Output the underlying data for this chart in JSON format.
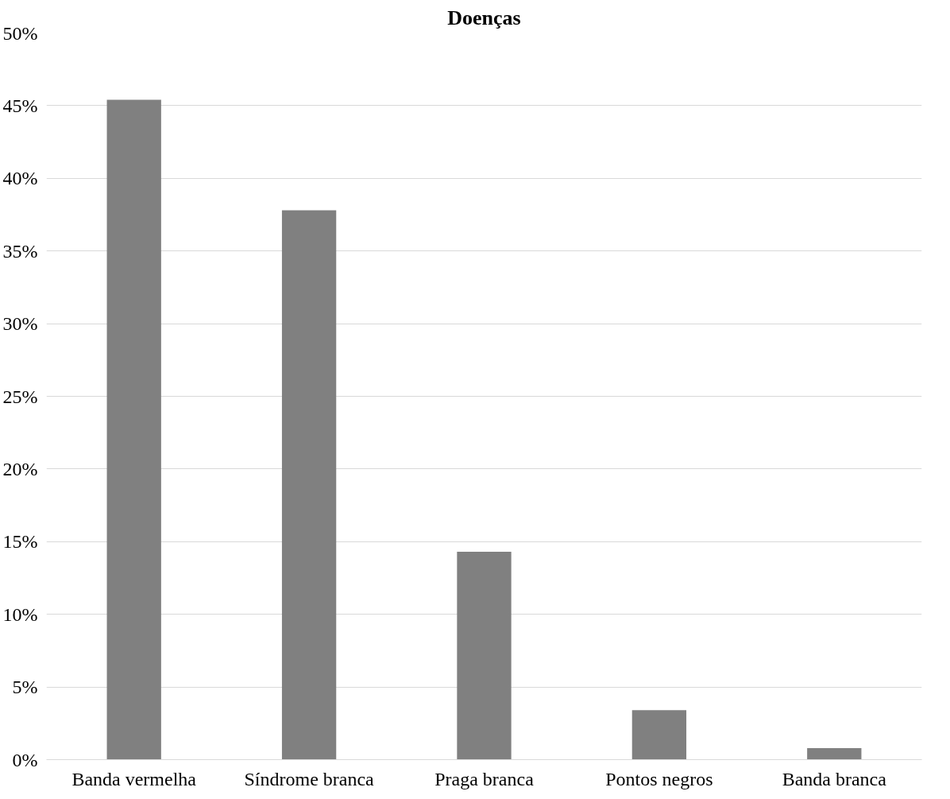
{
  "chart_data": {
    "type": "bar",
    "title": "Doenças",
    "categories": [
      "Banda vermelha",
      "Síndrome branca",
      "Praga branca",
      "Pontos negros",
      "Banda branca"
    ],
    "values": [
      45.4,
      37.8,
      14.3,
      3.4,
      0.8
    ],
    "color": "#808080",
    "ylim": [
      0,
      50
    ],
    "yticks": [
      {
        "value": 0,
        "label": "0%"
      },
      {
        "value": 5,
        "label": "5%"
      },
      {
        "value": 10,
        "label": "10%"
      },
      {
        "value": 15,
        "label": "15%"
      },
      {
        "value": 20,
        "label": "20%"
      },
      {
        "value": 25,
        "label": "25%"
      },
      {
        "value": 30,
        "label": "30%"
      },
      {
        "value": 35,
        "label": "35%"
      },
      {
        "value": 40,
        "label": "40%"
      },
      {
        "value": 45,
        "label": "45%"
      },
      {
        "value": 50,
        "label": "50%"
      }
    ],
    "grid": "y"
  }
}
